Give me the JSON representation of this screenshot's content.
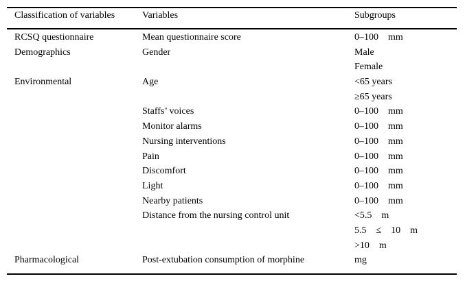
{
  "table": {
    "headers": [
      "Classification of variables",
      "Variables",
      "Subgroups"
    ],
    "rows": [
      {
        "c1": "RCSQ questionnaire",
        "c2": "Mean questionnaire score",
        "c3": "0–100    mm"
      },
      {
        "c1": "Demographics",
        "c2": "Gender",
        "c3": "Male"
      },
      {
        "c1": "",
        "c2": "",
        "c3": "Female"
      },
      {
        "c1": "Environmental",
        "c2": "Age",
        "c3": "<65 years"
      },
      {
        "c1": "",
        "c2": "",
        "c3": "≥65 years"
      },
      {
        "c1": "",
        "c2": "Staffs’ voices",
        "c3": "0–100    mm"
      },
      {
        "c1": "",
        "c2": "Monitor alarms",
        "c3": "0–100    mm"
      },
      {
        "c1": "",
        "c2": "Nursing interventions",
        "c3": "0–100    mm"
      },
      {
        "c1": "",
        "c2": "Pain",
        "c3": "0–100    mm"
      },
      {
        "c1": "",
        "c2": "Discomfort",
        "c3": "0–100    mm"
      },
      {
        "c1": "",
        "c2": "Light",
        "c3": "0–100    mm"
      },
      {
        "c1": "",
        "c2": "Nearby patients",
        "c3": "0–100    mm"
      },
      {
        "c1": "",
        "c2": "Distance from the nursing control unit",
        "c3": "<5.5    m"
      },
      {
        "c1": "",
        "c2": "",
        "c3": "5.5    ≤    10    m"
      },
      {
        "c1": "",
        "c2": "",
        "c3": ">10    m"
      },
      {
        "c1": "Pharmacological",
        "c2": "Post-extubation consumption of morphine",
        "c3": "mg"
      }
    ]
  }
}
